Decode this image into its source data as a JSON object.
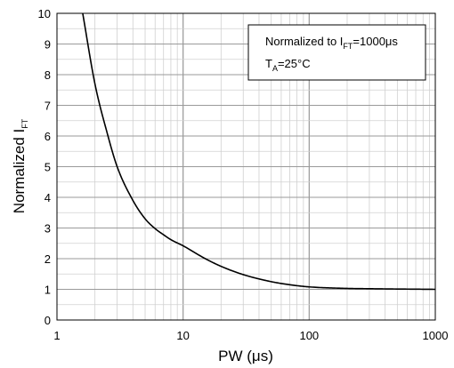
{
  "chart_data": {
    "type": "line",
    "x_scale": "log",
    "xlim": [
      1,
      1000
    ],
    "ylim": [
      0,
      10
    ],
    "x_ticks": [
      "1",
      "10",
      "100",
      "1000"
    ],
    "y_ticks": [
      "0",
      "1",
      "2",
      "3",
      "4",
      "5",
      "6",
      "7",
      "8",
      "9",
      "10"
    ],
    "xlabel": {
      "main": "PW (",
      "unit": "μs",
      "close": ")"
    },
    "ylabel": {
      "main": "Normalized I",
      "sub": "FT"
    },
    "grid": true,
    "annotation": {
      "line1_main": "Normalized to I",
      "line1_sub": "FT",
      "line1_rest": "=1000μs",
      "line2_main": "T",
      "line2_sub": "A",
      "line2_rest": "=25°C",
      "placement": "top-right"
    },
    "series": [
      {
        "color": "#000000",
        "x": [
          1.6,
          2,
          2.5,
          3,
          4,
          5,
          6,
          7,
          8,
          10,
          15,
          20,
          30,
          50,
          70,
          100,
          200,
          300,
          500,
          1000
        ],
        "y": [
          10,
          7.7,
          6.1,
          5.0,
          3.9,
          3.3,
          2.98,
          2.78,
          2.62,
          2.42,
          2.0,
          1.75,
          1.48,
          1.25,
          1.15,
          1.08,
          1.03,
          1.02,
          1.01,
          1.0
        ]
      }
    ]
  }
}
